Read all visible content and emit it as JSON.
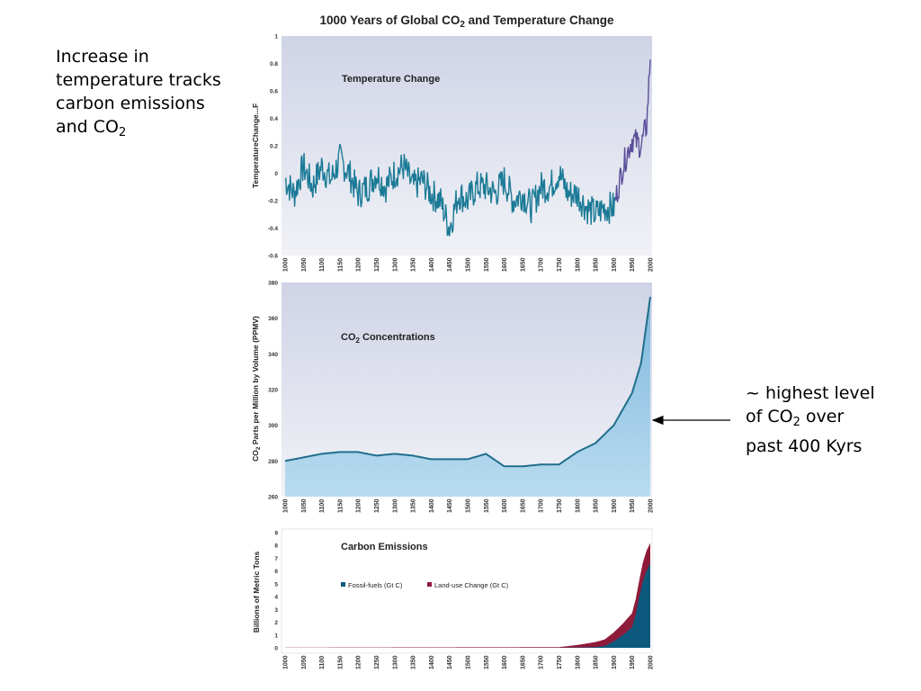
{
  "left_note": {
    "line1": "Increase in",
    "line2": "temperature tracks",
    "line3": "carbon emissions",
    "line4_prefix": "and CO",
    "line4_sub": "2"
  },
  "right_note": {
    "line1": "~ highest level",
    "line2_prefix": "of CO",
    "line2_sub": "2",
    "line2_suffix": " over",
    "line3": "past 400 Kyrs"
  },
  "figure": {
    "title_prefix": "1000 Years of Global CO",
    "title_sub": "2",
    "title_suffix": " and Temperature Change"
  },
  "colors": {
    "temp_line": "#1b7a96",
    "temp_recent": "#5b4e9a",
    "co2_line": "#1f6f8c",
    "co2_fill": "#9dcbe6",
    "fossil": "#0b5a7e",
    "landuse": "#8e1b3a"
  },
  "chart_data": [
    {
      "type": "line",
      "title": "Temperature Change",
      "ylabel": "TemperatureChange...F",
      "xlabel": "",
      "xlim": [
        1000,
        2000
      ],
      "ylim": [
        -0.6,
        1
      ],
      "y_ticks": [
        1,
        0.8,
        0.6,
        0.4,
        0.2,
        0,
        -0.2,
        -0.4,
        -0.6
      ],
      "x_ticks": [
        1000,
        1050,
        1100,
        1150,
        1200,
        1250,
        1300,
        1350,
        1400,
        1450,
        1500,
        1550,
        1600,
        1650,
        1700,
        1750,
        1800,
        1850,
        1900,
        1950,
        2000
      ],
      "x": [
        1000,
        1025,
        1050,
        1075,
        1100,
        1125,
        1150,
        1175,
        1200,
        1225,
        1250,
        1275,
        1300,
        1325,
        1350,
        1375,
        1400,
        1425,
        1450,
        1475,
        1500,
        1525,
        1550,
        1575,
        1600,
        1625,
        1650,
        1675,
        1700,
        1725,
        1750,
        1775,
        1800,
        1825,
        1850,
        1875,
        1900,
        1925,
        1950,
        1975,
        1990,
        2000
      ],
      "y": [
        -0.05,
        -0.15,
        0.05,
        -0.1,
        0.05,
        -0.05,
        0.1,
        0.0,
        -0.15,
        -0.1,
        0.0,
        -0.1,
        0.0,
        0.05,
        -0.1,
        -0.05,
        -0.15,
        -0.2,
        -0.4,
        -0.15,
        -0.2,
        -0.1,
        -0.1,
        -0.15,
        -0.05,
        -0.2,
        -0.15,
        -0.25,
        -0.1,
        -0.1,
        0.0,
        -0.15,
        -0.15,
        -0.25,
        -0.3,
        -0.25,
        -0.25,
        0.05,
        0.25,
        0.2,
        0.35,
        0.85
      ],
      "grid": false
    },
    {
      "type": "area",
      "title_prefix": "CO",
      "title_sub": "2",
      "title_suffix": " Concentrations",
      "ylabel_prefix": "CO",
      "ylabel_sub": "2",
      "ylabel_suffix": " Parts per Million by Volume (PPMV)",
      "xlabel": "",
      "xlim": [
        1000,
        2000
      ],
      "ylim": [
        260,
        380
      ],
      "y_ticks": [
        380,
        360,
        340,
        320,
        300,
        280,
        260
      ],
      "x_ticks": [
        1000,
        1050,
        1100,
        1150,
        1200,
        1250,
        1300,
        1350,
        1400,
        1450,
        1500,
        1550,
        1600,
        1650,
        1700,
        1750,
        1800,
        1850,
        1900,
        1950,
        2000
      ],
      "x": [
        1000,
        1050,
        1100,
        1150,
        1200,
        1250,
        1300,
        1350,
        1400,
        1450,
        1500,
        1550,
        1600,
        1650,
        1700,
        1750,
        1800,
        1850,
        1900,
        1925,
        1950,
        1975,
        2000
      ],
      "y": [
        280,
        282,
        284,
        285,
        285,
        283,
        284,
        283,
        281,
        281,
        281,
        284,
        277,
        277,
        278,
        278,
        285,
        290,
        300,
        309,
        318,
        335,
        372
      ],
      "grid": false
    },
    {
      "type": "area",
      "title": "Carbon Emissions",
      "ylabel": "Billions of Metric Tons",
      "xlabel": "",
      "xlim": [
        1000,
        2000
      ],
      "ylim": [
        0,
        9
      ],
      "y_ticks": [
        9,
        8,
        7,
        6,
        5,
        4,
        3,
        2,
        1,
        0
      ],
      "x_ticks": [
        1000,
        1050,
        1100,
        1150,
        1200,
        1250,
        1300,
        1350,
        1400,
        1450,
        1500,
        1550,
        1600,
        1650,
        1700,
        1750,
        1800,
        1850,
        1900,
        1950,
        2000
      ],
      "legend_position": "center",
      "series": [
        {
          "name": "Fossil-fuels (Gt C)",
          "x": [
            1000,
            1750,
            1800,
            1850,
            1875,
            1900,
            1925,
            1950,
            1960,
            1970,
            1980,
            1990,
            2000
          ],
          "values": [
            0,
            0,
            0.02,
            0.05,
            0.15,
            0.5,
            1.0,
            1.6,
            2.6,
            4.0,
            5.2,
            6.0,
            6.6
          ]
        },
        {
          "name": "Land-use Change (Gt C)",
          "x": [
            1000,
            1750,
            1800,
            1850,
            1875,
            1900,
            1925,
            1950,
            1960,
            1970,
            1980,
            1990,
            2000
          ],
          "values": [
            0.02,
            0.05,
            0.2,
            0.4,
            0.5,
            0.7,
            0.9,
            1.1,
            1.2,
            1.3,
            1.5,
            1.6,
            1.6
          ]
        }
      ],
      "grid": false
    }
  ]
}
